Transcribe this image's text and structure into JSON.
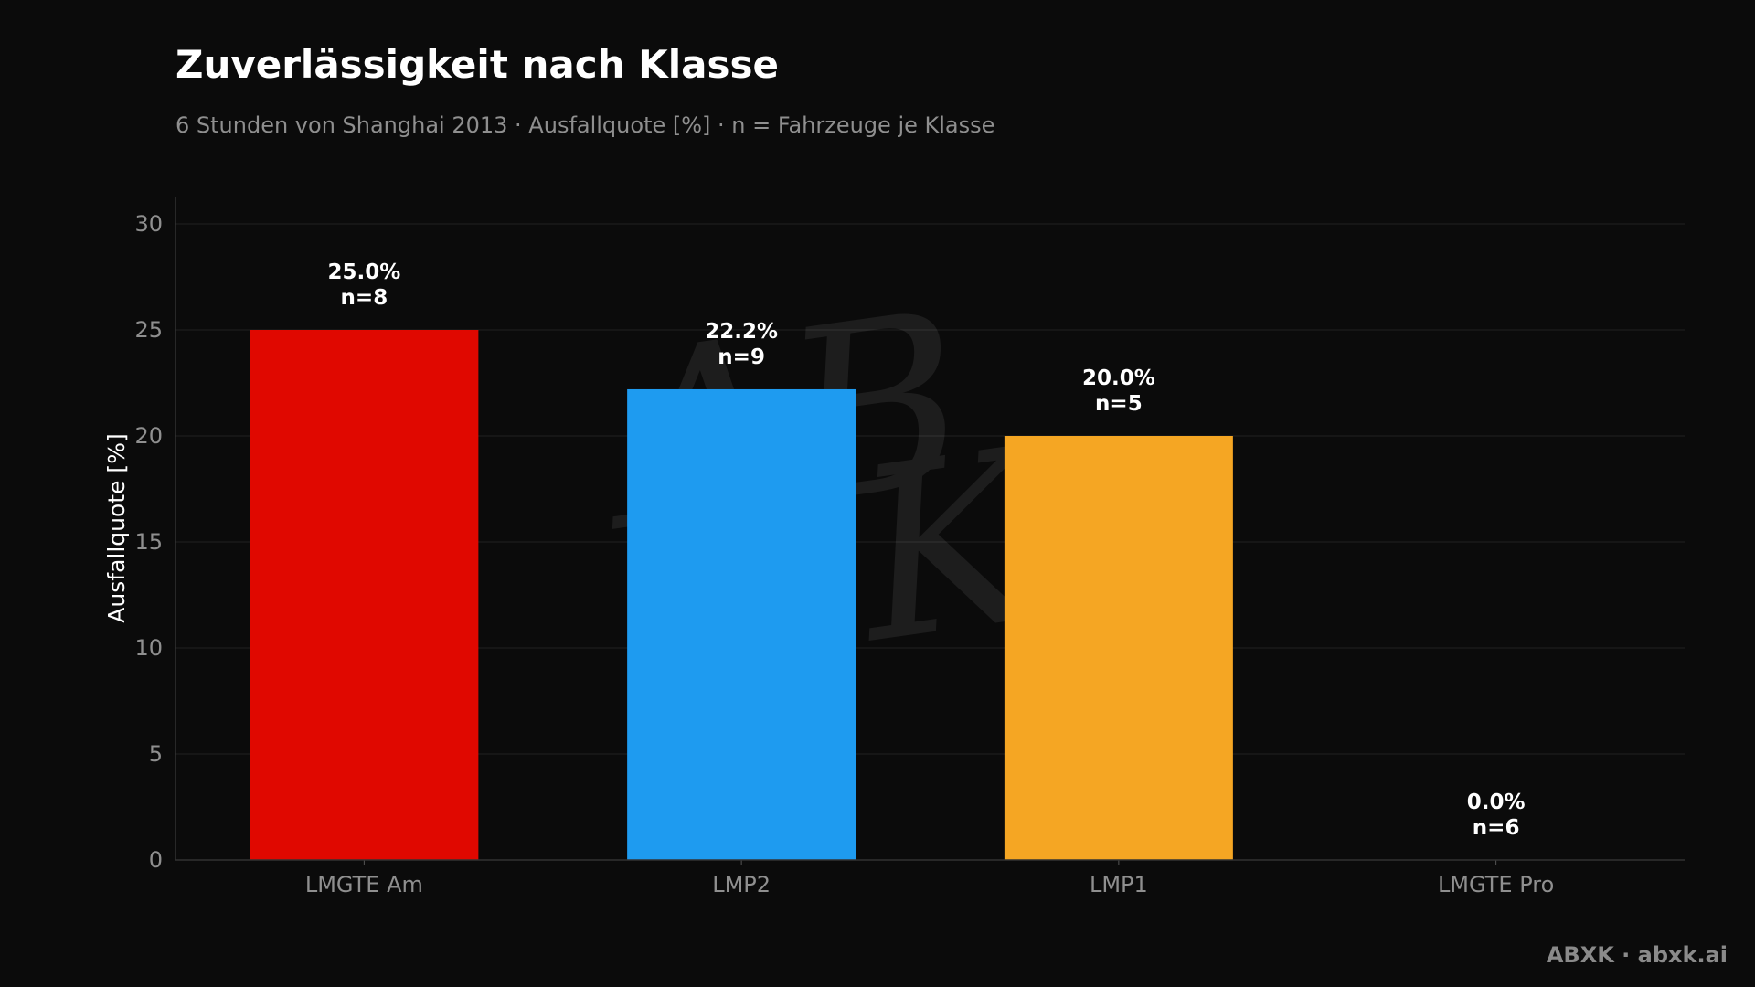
{
  "chart_data": {
    "type": "bar",
    "title": "Zuverlässigkeit nach Klasse",
    "subtitle": "6 Stunden von Shanghai 2013 · Ausfallquote [%] · n = Fahrzeuge je Klasse",
    "xlabel": "",
    "ylabel": "Ausfallquote [%]",
    "ylim": [
      0,
      30
    ],
    "yticks": [
      0,
      5,
      10,
      15,
      20,
      25,
      30
    ],
    "grid": true,
    "categories": [
      "LMGTE Am",
      "LMP2",
      "LMP1",
      "LMGTE Pro"
    ],
    "values": [
      25.0,
      22.2,
      20.0,
      0.0
    ],
    "value_labels": [
      "25.0%",
      "22.2%",
      "20.0%",
      "0.0%"
    ],
    "n_labels": [
      "n=8",
      "n=9",
      "n=5",
      "n=6"
    ],
    "colors": [
      "#e00800",
      "#1e9bf0",
      "#f5a623",
      "#888888"
    ]
  },
  "watermark": "ABXK",
  "footer": "ABXK · abxk.ai",
  "colors": {
    "background": "#0b0b0b",
    "grid": "#222222",
    "axis": "#333333"
  }
}
